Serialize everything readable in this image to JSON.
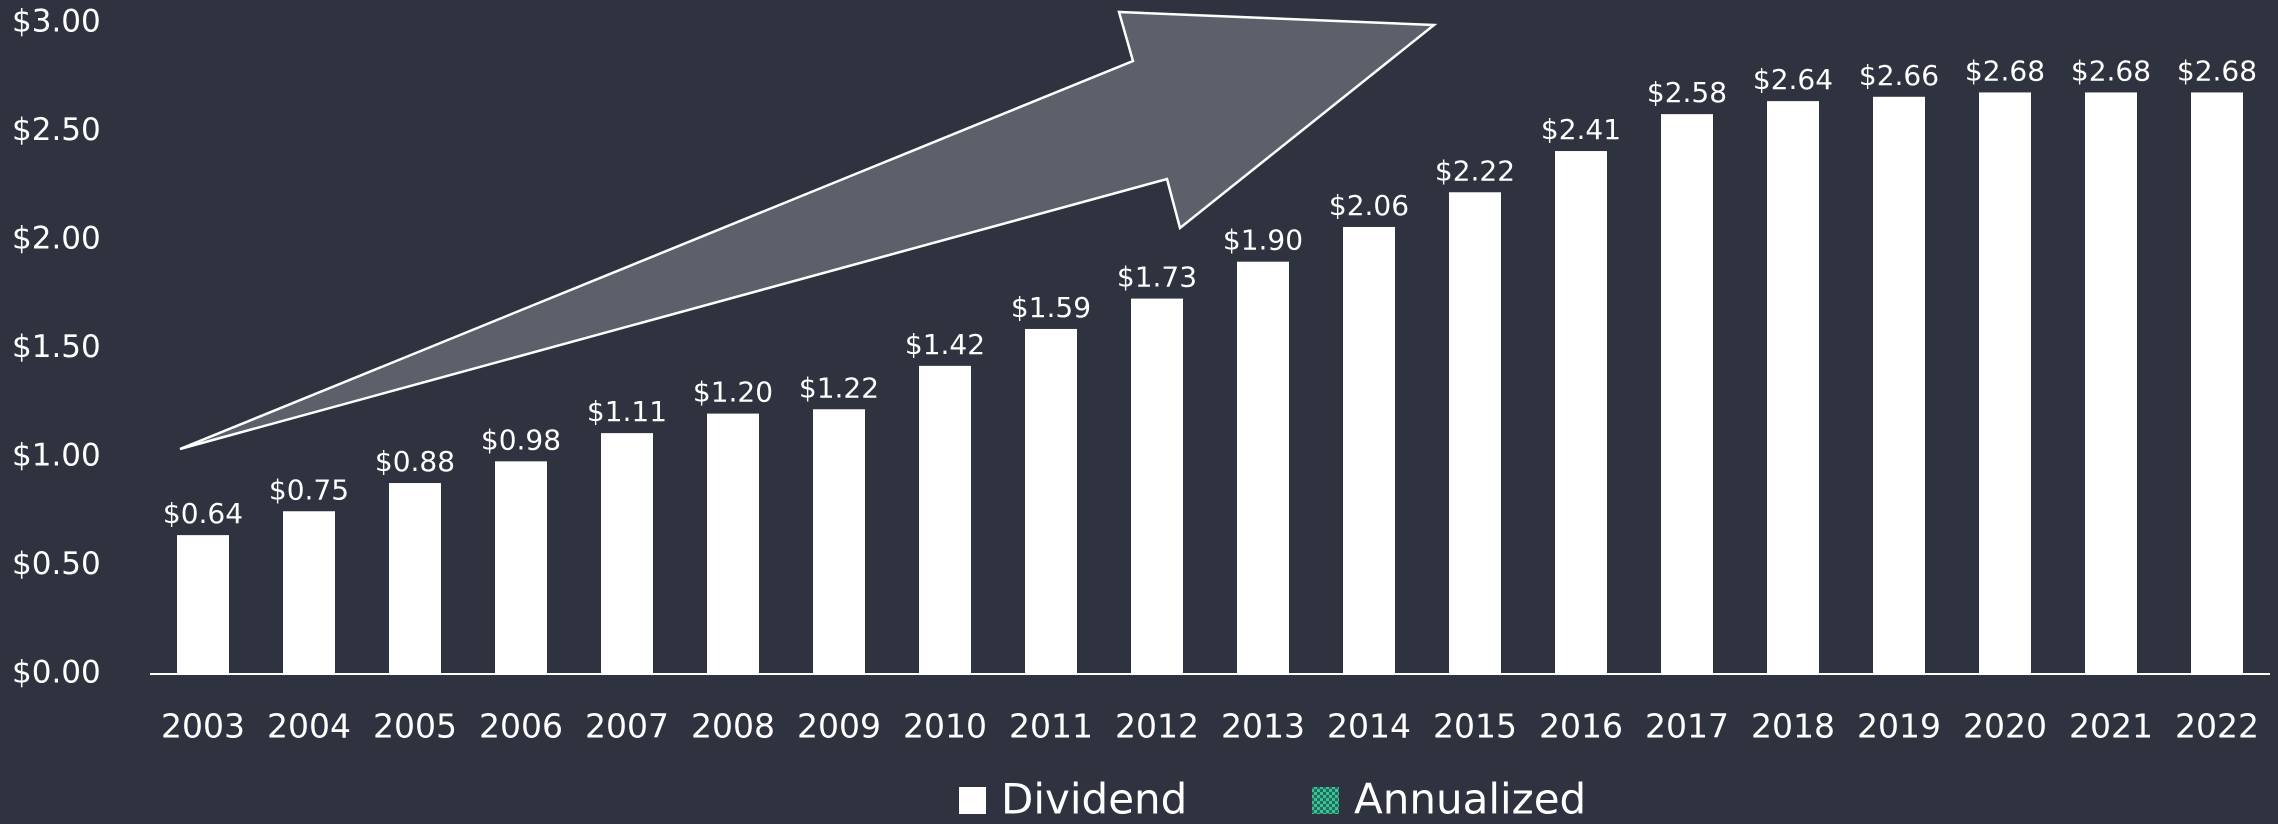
{
  "chart_data": {
    "type": "bar",
    "categories": [
      "2003",
      "2004",
      "2005",
      "2006",
      "2007",
      "2008",
      "2009",
      "2010",
      "2011",
      "2012",
      "2013",
      "2014",
      "2015",
      "2016",
      "2017",
      "2018",
      "2019",
      "2020",
      "2021",
      "2022"
    ],
    "series": [
      {
        "name": "Dividend",
        "color": "#ffffff",
        "values": [
          0.64,
          0.75,
          0.88,
          0.98,
          1.11,
          1.2,
          1.22,
          1.42,
          1.59,
          1.73,
          1.9,
          2.06,
          2.22,
          2.41,
          2.58,
          2.64,
          2.66,
          2.68,
          2.68,
          2.68
        ],
        "value_labels": [
          "$0.64",
          "$0.75",
          "$0.88",
          "$0.98",
          "$1.11",
          "$1.20",
          "$1.22",
          "$1.42",
          "$1.59",
          "$1.73",
          "$1.90",
          "$2.06",
          "$2.22",
          "$2.41",
          "$2.58",
          "$2.64",
          "$2.66",
          "$2.68",
          "$2.68",
          "$2.68"
        ]
      },
      {
        "name": "Annualized",
        "color": "#3fbf9a",
        "values": [
          null,
          null,
          null,
          null,
          null,
          null,
          null,
          null,
          null,
          null,
          null,
          null,
          null,
          null,
          null,
          null,
          null,
          null,
          null,
          null
        ]
      }
    ],
    "ylim": [
      0,
      3
    ],
    "yticks": [
      {
        "value": 0,
        "label": "$0.00"
      },
      {
        "value": 0.5,
        "label": "$0.50"
      },
      {
        "value": 1,
        "label": "$1.00"
      },
      {
        "value": 1.5,
        "label": "$1.50"
      },
      {
        "value": 2,
        "label": "$2.00"
      },
      {
        "value": 2.5,
        "label": "$2.50"
      },
      {
        "value": 3,
        "label": "$3.00"
      }
    ],
    "grid": false
  }
}
